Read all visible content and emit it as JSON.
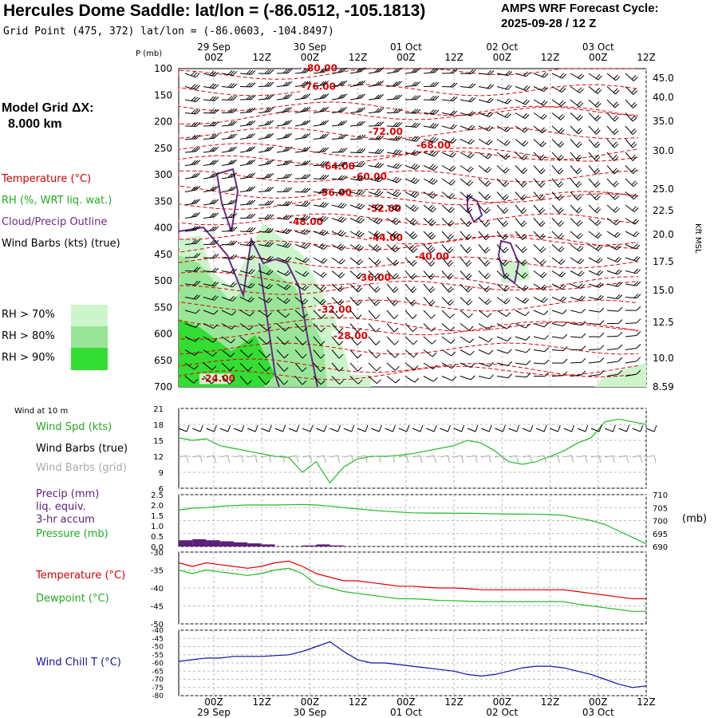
{
  "header": {
    "title": "Hercules Dome Saddle:  lat/lon = (-86.0512, -105.1813)",
    "grid_point": "Grid Point (475, 372) lat/lon = (-86.0603, -104.8497)",
    "cycle_line1": "AMPS WRF Forecast Cycle:",
    "cycle_line2": "2025-09-28 / 12  Z"
  },
  "sidebar": {
    "model_grid_line1": "Model Grid ΔX:",
    "model_grid_line2": "8.000 km",
    "legend": [
      {
        "label": "Temperature (°C)",
        "color": "#d00000"
      },
      {
        "label": "RH (%, WRT liq. wat.)",
        "color": "#22aa22"
      },
      {
        "label": "Cloud/Precip Outline",
        "color": "#6a2a8a"
      },
      {
        "label": "Wind Barbs (kts) (true)",
        "color": "#000000"
      }
    ],
    "rh_levels": [
      {
        "label": "RH > 70%",
        "color": "#ccf5cc"
      },
      {
        "label": "RH > 80%",
        "color": "#99e699"
      },
      {
        "label": "RH > 90%",
        "color": "#33dd33"
      }
    ]
  },
  "time_axis": {
    "ticks": [
      "00Z",
      "12Z",
      "00Z",
      "12Z",
      "00Z",
      "12Z",
      "00Z",
      "12Z",
      "00Z",
      "12Z"
    ],
    "dates": [
      "29 Sep",
      "30 Sep",
      "01 Oct",
      "02 Oct",
      "03 Oct"
    ]
  },
  "colors": {
    "temperature": "#dd0000",
    "rh_line": "#22bb22",
    "wind_chill": "#1111aa",
    "precip": "#5c1f7a",
    "cloud_outline": "#6a2a8a",
    "grid_barbs": "#aaaaaa",
    "grid_lines": "#bbbbbb"
  },
  "chart_data": [
    {
      "type": "line",
      "panel": "upper-air cross section",
      "ylabel": "P (mb)",
      "ylabel_right": "Kft MSL",
      "yticks_left": [
        100,
        150,
        200,
        250,
        300,
        350,
        400,
        450,
        500,
        550,
        600,
        650,
        700
      ],
      "yticks_right": [
        "45.0",
        "40.0",
        "35.0",
        "30.0",
        "25.0",
        "22.5",
        "20.0",
        "17.5",
        "15.0",
        "12.5",
        "10.0",
        "8.59"
      ],
      "ylim": [
        100,
        700
      ],
      "temperature_labels": [
        {
          "text": "-80.00",
          "p": 105
        },
        {
          "text": "-76.00",
          "p": 140
        },
        {
          "text": "-72.00",
          "p": 225
        },
        {
          "text": "-68.00",
          "p": 250
        },
        {
          "text": "-64.00",
          "p": 290
        },
        {
          "text": "-60.00",
          "p": 310
        },
        {
          "text": "-56.00",
          "p": 340
        },
        {
          "text": "-52.00",
          "p": 370
        },
        {
          "text": "-48.00",
          "p": 395
        },
        {
          "text": "-44.00",
          "p": 425
        },
        {
          "text": "-40.00",
          "p": 460
        },
        {
          "text": "-36.00",
          "p": 500
        },
        {
          "text": "-32.00",
          "p": 560
        },
        {
          "text": "-28.00",
          "p": 610
        },
        {
          "text": "-24.00",
          "p": 690
        }
      ]
    },
    {
      "type": "line",
      "panel": "Wind at 10 m",
      "panel_label": "Wind at 10 m",
      "series": [
        {
          "name": "Wind Spd (kts)",
          "values": [
            15.5,
            15,
            15.3,
            14,
            13.5,
            13,
            12.5,
            12,
            11.8,
            9,
            11,
            7,
            10,
            11.5,
            12,
            12,
            12.2,
            12.5,
            13,
            13.5,
            14,
            15,
            14.5,
            13,
            11,
            10.5,
            11,
            12,
            13,
            14.5,
            15.5,
            18.5,
            19,
            18.5,
            18
          ]
        },
        {
          "name": "Wind Barbs (true)",
          "values": []
        },
        {
          "name": "Wind Barbs (grid)",
          "values": []
        }
      ],
      "yticks": [
        6,
        9,
        12,
        15,
        18,
        21
      ],
      "ylim": [
        6,
        21
      ]
    },
    {
      "type": "bar",
      "panel": "precip and pressure",
      "series": [
        {
          "name": "Precip (mm)",
          "label_lines": [
            "Precip (mm)",
            "liq. equiv.",
            "3-hr accum"
          ],
          "values": [
            0.3,
            0.35,
            0.3,
            0.25,
            0.2,
            0.15,
            0.1,
            0,
            0,
            0.05,
            0.1,
            0.05,
            0,
            0,
            0,
            0,
            0,
            0,
            0,
            0,
            0,
            0,
            0,
            0,
            0,
            0,
            0,
            0,
            0,
            0,
            0,
            0,
            0,
            0,
            0
          ]
        },
        {
          "name": "Pressure (mb)",
          "values": [
            704,
            704.8,
            705,
            705.5,
            705.8,
            706,
            706,
            706,
            706.1,
            706.2,
            706,
            705.6,
            705,
            704.5,
            704,
            703.6,
            703.3,
            703,
            702.9,
            702.9,
            702.8,
            702.8,
            702.7,
            702.6,
            702.5,
            702.5,
            702.4,
            702.3,
            702,
            701,
            700,
            698.5,
            696,
            693.5,
            691
          ]
        }
      ],
      "yticks_left": [
        "0.0",
        "0.5",
        "1.0",
        "1.5",
        "2.0",
        "2.5"
      ],
      "yticks_right": [
        "690",
        "695",
        "700",
        "705",
        "710"
      ],
      "ylabel_right": "(mb)",
      "ylim_left": [
        0,
        2.5
      ],
      "ylim_right": [
        690,
        710
      ]
    },
    {
      "type": "line",
      "panel": "temperature and dewpoint",
      "series": [
        {
          "name": "Temperature (°C)",
          "values": [
            -33,
            -34,
            -33,
            -33.5,
            -34,
            -34.5,
            -34,
            -33,
            -32.5,
            -34,
            -36,
            -37,
            -38,
            -38,
            -38.5,
            -39,
            -39.5,
            -39.5,
            -39.8,
            -40,
            -40,
            -40.2,
            -40.5,
            -40.5,
            -40.5,
            -40.5,
            -40.5,
            -40.5,
            -40.5,
            -41,
            -41.5,
            -42,
            -42.5,
            -43,
            -43
          ]
        },
        {
          "name": "Dewpoint (°C)",
          "values": [
            -35,
            -36,
            -35,
            -35.5,
            -36,
            -36.5,
            -36,
            -35,
            -34.5,
            -36,
            -39,
            -40,
            -41,
            -41.5,
            -42,
            -42.5,
            -43,
            -43,
            -43.2,
            -43.5,
            -43.5,
            -43.7,
            -43.8,
            -43.8,
            -43.8,
            -43.8,
            -43.8,
            -43.8,
            -43.8,
            -44.5,
            -45,
            -45.5,
            -46,
            -46.5,
            -46.5
          ]
        }
      ],
      "yticks": [
        -50,
        -45,
        -40,
        -35,
        -30
      ],
      "ylim": [
        -50,
        -30
      ]
    },
    {
      "type": "line",
      "panel": "wind chill",
      "series": [
        {
          "name": "Wind Chill T (°C)",
          "values": [
            -59,
            -58,
            -57,
            -57,
            -56,
            -56,
            -56,
            -55.5,
            -55,
            -53,
            -50,
            -47,
            -53,
            -58,
            -60,
            -60,
            -61,
            -62,
            -63,
            -64,
            -65,
            -67,
            -68,
            -67,
            -65,
            -63,
            -62,
            -62,
            -63,
            -65,
            -67,
            -70,
            -73,
            -75,
            -74
          ]
        }
      ],
      "yticks": [
        -80,
        -75,
        -70,
        -65,
        -60,
        -55,
        -50,
        -45,
        -40
      ],
      "ylim": [
        -80,
        -40
      ]
    }
  ]
}
